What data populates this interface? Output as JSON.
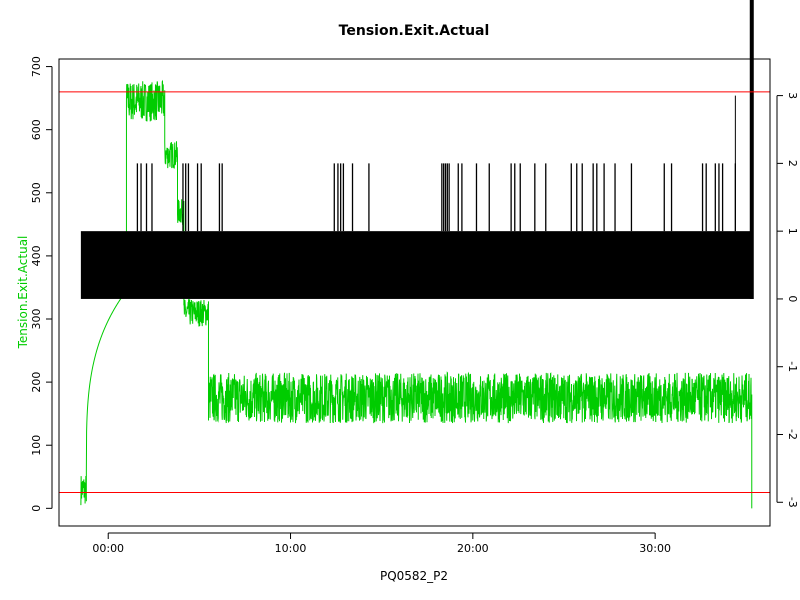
{
  "chart_data": {
    "type": "line",
    "title": "Tension.Exit.Actual",
    "xlabel": "PQ0582_P2",
    "ylabel": "Tension.Exit.Actual",
    "ylabel_color": "#00cc00",
    "xlim": [
      -2.7,
      36.3
    ],
    "ylim": [
      -28,
      712
    ],
    "y2lim": [
      -3.35,
      3.54
    ],
    "x_ticks": [
      {
        "value": 0,
        "label": "00:00"
      },
      {
        "value": 10,
        "label": "10:00"
      },
      {
        "value": 20,
        "label": "20:00"
      },
      {
        "value": 30,
        "label": "30:00"
      }
    ],
    "y_ticks": [
      0,
      100,
      200,
      300,
      400,
      500,
      600,
      700
    ],
    "y2_ticks": [
      -3,
      -2,
      -1,
      0,
      1,
      2,
      3
    ],
    "grid": false,
    "reference_lines": {
      "color": "#ff0000",
      "y_values": [
        660,
        25
      ]
    },
    "series": [
      {
        "color": "#00cc00",
        "axis": "left",
        "segments": [
          {
            "x_start": -1.5,
            "x_end": -1.2,
            "mean": 30,
            "noise": 25
          },
          {
            "x_start": -1.2,
            "x_end": 1.0,
            "mean": 345,
            "noise": 0,
            "ramp_from": 60
          },
          {
            "x_start": 1.0,
            "x_end": 3.1,
            "mean": 645,
            "noise": 32
          },
          {
            "x_start": 3.1,
            "x_end": 3.8,
            "mean": 560,
            "noise": 22
          },
          {
            "x_start": 3.8,
            "x_end": 4.15,
            "mean": 470,
            "noise": 20
          },
          {
            "x_start": 4.15,
            "x_end": 5.5,
            "mean": 310,
            "noise": 22
          },
          {
            "x_start": 5.5,
            "x_end": 35.3,
            "mean": 175,
            "noise": 40
          }
        ],
        "end_value": 0
      },
      {
        "color": "#000000",
        "axis": "right",
        "band": {
          "x_start": -1.5,
          "x_end": 35.3,
          "low": 0,
          "high": 1
        },
        "spike_value": 2,
        "spike_x": [
          1.6,
          1.8,
          2.1,
          2.4,
          4.1,
          4.25,
          4.4,
          4.9,
          5.1,
          6.1,
          6.25,
          12.4,
          12.6,
          12.75,
          12.9,
          13.4,
          14.3,
          18.3,
          18.4,
          18.5,
          18.6,
          18.7,
          19.2,
          19.4,
          20.2,
          20.9,
          22.1,
          22.3,
          22.6,
          23.4,
          24.0,
          25.4,
          25.7,
          26.0,
          26.6,
          26.8,
          27.2,
          27.8,
          28.7,
          30.5,
          30.9,
          32.6,
          32.8,
          33.3,
          33.5,
          33.7,
          34.4
        ],
        "tall_spike": {
          "x": 34.4,
          "value": 3
        },
        "exit_line": {
          "x": 35.3,
          "from": 0,
          "to": 3.54
        }
      }
    ]
  }
}
